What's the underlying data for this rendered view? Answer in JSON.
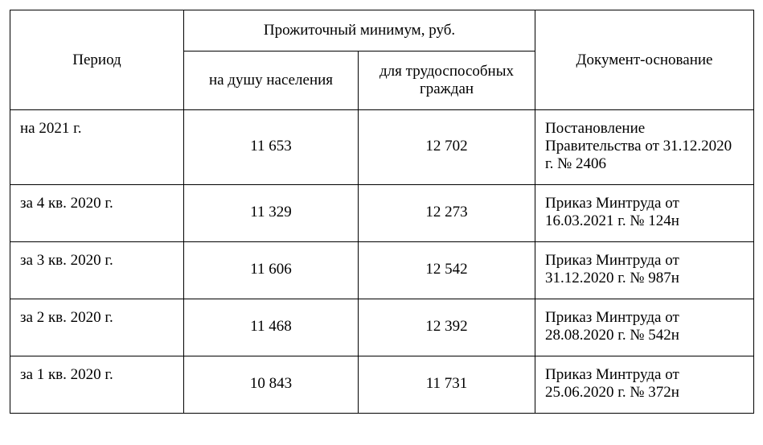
{
  "table": {
    "headers": {
      "period": "Период",
      "minimum_group": "Прожиточный минимум, руб.",
      "per_capita": "на душу населения",
      "working_age": "для трудоспособных граждан",
      "document": "Документ-основание"
    },
    "rows": [
      {
        "period": "на 2021 г.",
        "per_capita": "11 653",
        "working_age": "12 702",
        "document": "Постановление Правительства от 31.12.2020 г. № 2406"
      },
      {
        "period": "за 4 кв. 2020 г.",
        "per_capita": "11 329",
        "working_age": "12 273",
        "document": "Приказ Минтруда от 16.03.2021 г. № 124н"
      },
      {
        "period": "за 3 кв. 2020 г.",
        "per_capita": "11 606",
        "working_age": "12 542",
        "document": "Приказ Минтруда от 31.12.2020 г. № 987н"
      },
      {
        "period": "за 2 кв. 2020 г.",
        "per_capita": "11 468",
        "working_age": "12 392",
        "document": "Приказ Минтруда от 28.08.2020 г. № 542н"
      },
      {
        "period": "за 1 кв. 2020 г.",
        "per_capita": "10 843",
        "working_age": "11 731",
        "document": "Приказ Минтруда от 25.06.2020 г. № 372н"
      }
    ]
  }
}
